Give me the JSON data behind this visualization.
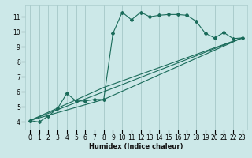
{
  "background_color": "#cce8e8",
  "grid_color": "#aacccc",
  "line_color": "#1a6b5a",
  "xlabel": "Humidex (Indice chaleur)",
  "xlim": [
    -0.5,
    23.5
  ],
  "ylim": [
    3.5,
    11.8
  ],
  "xticks": [
    0,
    1,
    2,
    3,
    4,
    5,
    6,
    7,
    8,
    9,
    10,
    11,
    12,
    13,
    14,
    15,
    16,
    17,
    18,
    19,
    20,
    21,
    22,
    23
  ],
  "yticks": [
    4,
    5,
    6,
    7,
    8,
    9,
    10,
    11
  ],
  "series1_x": [
    0,
    1,
    2,
    3,
    4,
    5,
    6,
    7,
    8,
    9,
    10,
    11,
    12,
    13,
    14,
    15,
    16,
    17,
    18,
    19,
    20,
    21,
    22,
    23
  ],
  "series1_y": [
    4.1,
    4.0,
    4.4,
    4.9,
    5.9,
    5.4,
    5.4,
    5.5,
    5.5,
    9.9,
    11.3,
    10.8,
    11.3,
    11.0,
    11.1,
    11.15,
    11.15,
    11.1,
    10.7,
    9.9,
    9.6,
    9.95,
    9.55,
    9.6
  ],
  "line2_x": [
    0,
    23
  ],
  "line2_y": [
    4.1,
    9.6
  ],
  "line3_x": [
    0,
    8,
    23
  ],
  "line3_y": [
    4.1,
    5.5,
    9.6
  ],
  "line4_x": [
    0,
    8,
    23
  ],
  "line4_y": [
    4.1,
    6.3,
    9.6
  ]
}
